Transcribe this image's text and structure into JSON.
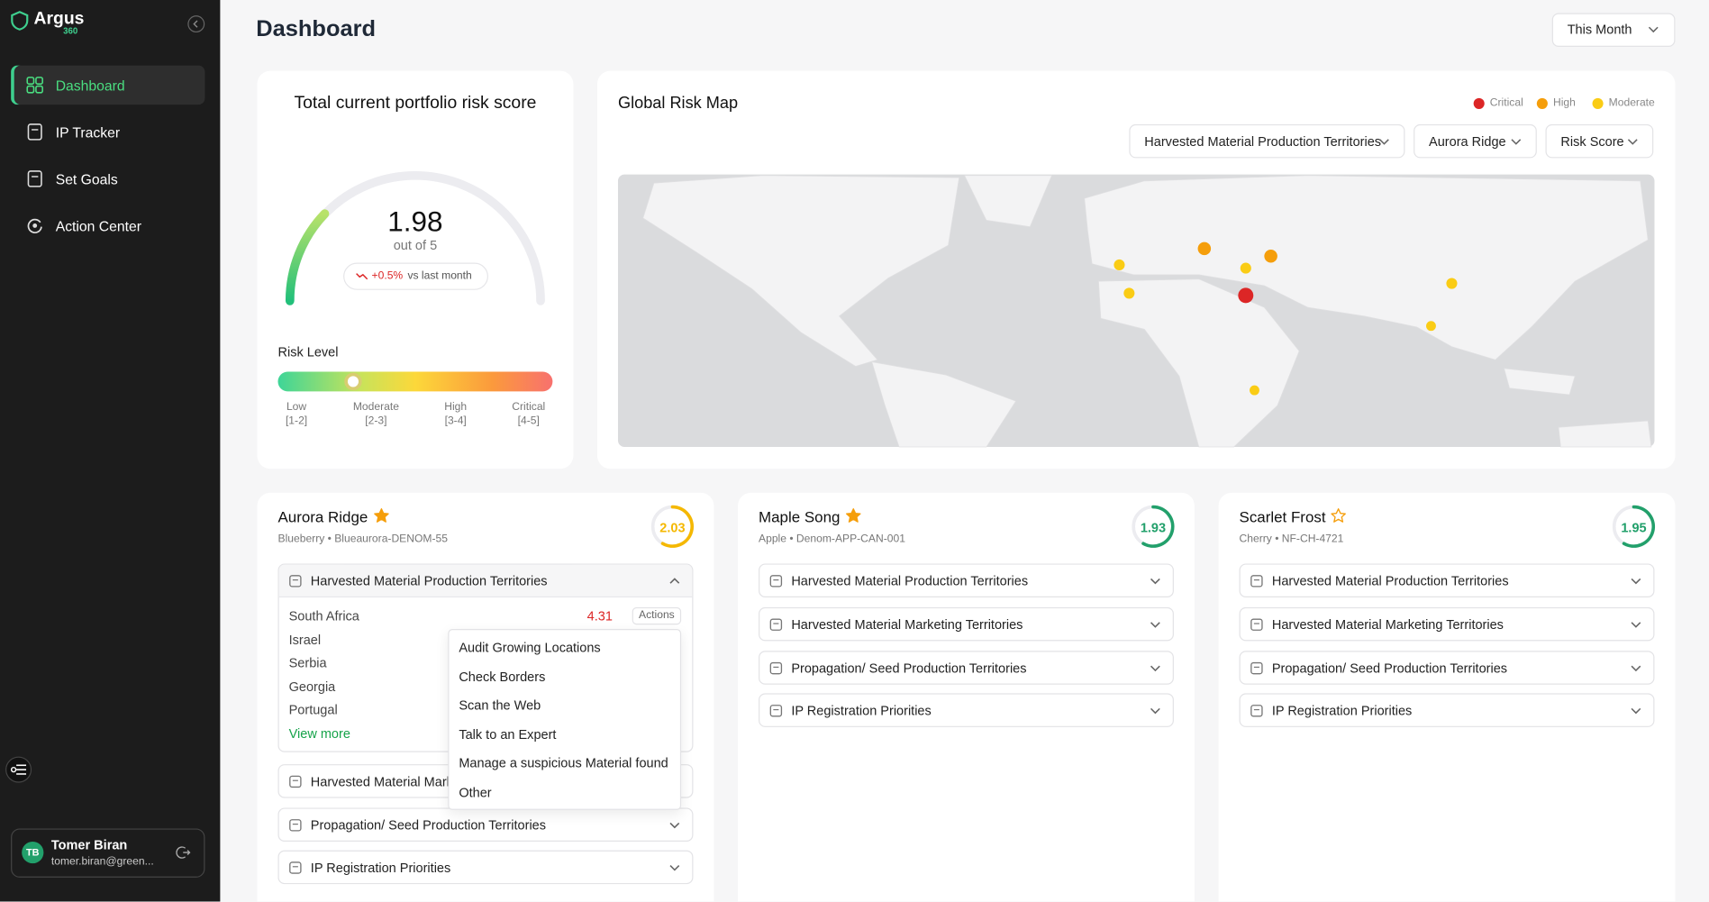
{
  "sidebar": {
    "brand": "Argus",
    "brand_sub": "360",
    "nav": [
      "Dashboard",
      "IP Tracker",
      "Set Goals",
      "Action Center"
    ],
    "user": {
      "initials": "TB",
      "name": "Tomer Biran",
      "email": "tomer.biran@green..."
    }
  },
  "header": {
    "title": "Dashboard",
    "period": "This Month"
  },
  "risk_card": {
    "title": "Total current portfolio risk score",
    "score": 1.98,
    "out_of": "out of 5",
    "change": "+0.5%",
    "change_label": "vs last month",
    "level_title": "Risk Level",
    "levels": [
      {
        "name": "Low",
        "range": "[1-2]"
      },
      {
        "name": "Moderate",
        "range": "[2-3]"
      },
      {
        "name": "High",
        "range": "[3-4]"
      },
      {
        "name": "Critical",
        "range": "[4-5]"
      }
    ]
  },
  "map_card": {
    "title": "Global Risk Map",
    "legend": [
      {
        "name": "Critical",
        "color": "#dc2626"
      },
      {
        "name": "High",
        "color": "#f59e0b"
      },
      {
        "name": "Moderate",
        "color": "#facc15"
      }
    ],
    "filters": [
      "Harvested Material Production Territories",
      "Aurora Ridge",
      "Risk Score"
    ]
  },
  "portfolios": [
    {
      "name": "Aurora Ridge",
      "starred": true,
      "subtitle": "Blueberry • Blueaurora-DENOM-55",
      "score": 2.03,
      "score_color": "#f5b800",
      "sections": [
        "Harvested Material Production Territories",
        "Harvested Material Marketing Territories",
        "Propagation/ Seed Production Territories",
        "IP Registration Priorities"
      ],
      "expanded": {
        "rows": [
          {
            "country": "South Africa",
            "score": 4.31
          },
          {
            "country": "Israel"
          },
          {
            "country": "Serbia"
          },
          {
            "country": "Georgia"
          },
          {
            "country": "Portugal"
          }
        ],
        "actions": "Actions",
        "view_more": "View more",
        "menu": [
          "Audit Growing Locations",
          "Check Borders",
          "Scan the Web",
          "Talk to an Expert",
          "Manage a suspicious Material found",
          "Other"
        ]
      }
    },
    {
      "name": "Maple Song",
      "starred": true,
      "subtitle": "Apple • Denom-APP-CAN-001",
      "score": 1.93,
      "score_color": "#22a06b",
      "sections": [
        "Harvested Material Production Territories",
        "Harvested Material Marketing Territories",
        "Propagation/ Seed Production Territories",
        "IP Registration Priorities"
      ]
    },
    {
      "name": "Scarlet Frost",
      "starred": false,
      "subtitle": "Cherry • NF-CH-4721",
      "score": 1.95,
      "score_color": "#22a06b",
      "sections": [
        "Harvested Material Production Territories",
        "Harvested Material Marketing Territories",
        "Propagation/ Seed Production Territories",
        "IP Registration Priorities"
      ]
    }
  ]
}
